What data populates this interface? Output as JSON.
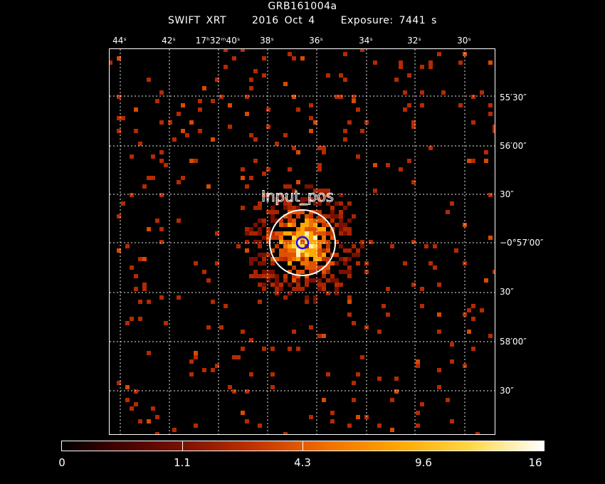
{
  "title": {
    "line1": "GRB161004a",
    "instrument": "SWIFT XRT",
    "date": "2016 Oct  4",
    "exposure": "Exposure: 7441 s"
  },
  "ra_labels": [
    "44ˢ",
    "42ˢ",
    "17ʰ32ᵐ40ˢ",
    "38ˢ",
    "36ˢ",
    "34ˢ",
    "32ˢ",
    "30ˢ"
  ],
  "dec_labels": [
    "55′30″",
    "56′00″",
    "30″",
    "−0°57′00″",
    "30″",
    "58′00″",
    "30″"
  ],
  "region": {
    "label": "Input_pos",
    "outer_color": "#ffffff",
    "inner_color": "#0000ff"
  },
  "colorbar": {
    "labels": [
      "0",
      "1.1",
      "4.3",
      "9.6",
      "16"
    ],
    "colors": [
      "#000000",
      "#7a1000",
      "#f07000",
      "#ffd84a",
      "#ffffff"
    ]
  }
}
